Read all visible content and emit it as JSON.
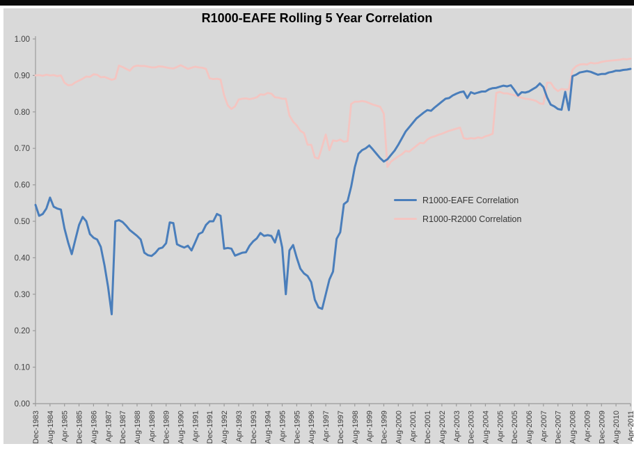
{
  "page": {
    "top_bar_color": "#0a0a0a",
    "background": "#ffffff"
  },
  "chart_data": {
    "type": "line",
    "title": "R1000-EAFE Rolling 5 Year Correlation",
    "xlabel": "",
    "ylabel": "",
    "plot_bg": "#d9d9d9",
    "axis_color": "#9b9b9b",
    "tick_label_color": "#3f3f3f",
    "grid": false,
    "legend_position": "inside-center-right",
    "ylim": [
      0,
      1
    ],
    "ytick_step": 0.1,
    "ytick_labels": [
      "0.00",
      "0.10",
      "0.20",
      "0.30",
      "0.40",
      "0.50",
      "0.60",
      "0.70",
      "0.80",
      "0.90",
      "1.00"
    ],
    "x_label_every_n_points": 4,
    "x_period_months": 2,
    "categories": [
      "Dec-1983",
      "Aug-1984",
      "Apr-1985",
      "Dec-1985",
      "Aug-1986",
      "Apr-1987",
      "Dec-1987",
      "Aug-1988",
      "Apr-1989",
      "Dec-1989",
      "Aug-1990",
      "Apr-1991",
      "Dec-1991",
      "Aug-1992",
      "Apr-1993",
      "Dec-1993",
      "Aug-1994",
      "Apr-1995",
      "Dec-1995",
      "Aug-1996",
      "Apr-1997",
      "Dec-1997",
      "Aug-1998",
      "Apr-1999",
      "Dec-1999",
      "Aug-2000",
      "Apr-2001",
      "Dec-2001",
      "Aug-2002",
      "Apr-2003",
      "Dec-2003",
      "Aug-2004",
      "Apr-2005",
      "Dec-2005",
      "Aug-2006",
      "Apr-2007",
      "Dec-2007",
      "Aug-2008",
      "Apr-2009",
      "Dec-2009",
      "Aug-2010",
      "Apr-2011"
    ],
    "series": [
      {
        "name": "R1000-EAFE Correlation",
        "color": "#4a7ebb",
        "stroke_width": 3,
        "values": [
          0.545,
          0.515,
          0.52,
          0.535,
          0.565,
          0.54,
          0.535,
          0.532,
          0.48,
          0.442,
          0.41,
          0.45,
          0.49,
          0.512,
          0.5,
          0.465,
          0.455,
          0.45,
          0.43,
          0.38,
          0.32,
          0.245,
          0.5,
          0.503,
          0.498,
          0.488,
          0.476,
          0.468,
          0.46,
          0.45,
          0.414,
          0.407,
          0.405,
          0.413,
          0.425,
          0.428,
          0.44,
          0.497,
          0.495,
          0.437,
          0.432,
          0.428,
          0.433,
          0.42,
          0.442,
          0.465,
          0.47,
          0.49,
          0.5,
          0.5,
          0.52,
          0.515,
          0.425,
          0.427,
          0.425,
          0.406,
          0.41,
          0.414,
          0.415,
          0.433,
          0.445,
          0.453,
          0.468,
          0.46,
          0.462,
          0.46,
          0.442,
          0.475,
          0.428,
          0.3,
          0.42,
          0.435,
          0.4,
          0.37,
          0.357,
          0.35,
          0.333,
          0.285,
          0.264,
          0.26,
          0.3,
          0.34,
          0.362,
          0.452,
          0.47,
          0.547,
          0.555,
          0.595,
          0.648,
          0.685,
          0.695,
          0.7,
          0.708,
          0.697,
          0.685,
          0.673,
          0.664,
          0.67,
          0.682,
          0.694,
          0.71,
          0.728,
          0.746,
          0.758,
          0.77,
          0.782,
          0.79,
          0.798,
          0.805,
          0.803,
          0.812,
          0.82,
          0.828,
          0.836,
          0.838,
          0.845,
          0.85,
          0.854,
          0.856,
          0.838,
          0.854,
          0.85,
          0.853,
          0.856,
          0.856,
          0.862,
          0.865,
          0.866,
          0.869,
          0.872,
          0.87,
          0.873,
          0.86,
          0.845,
          0.854,
          0.853,
          0.856,
          0.862,
          0.868,
          0.878,
          0.868,
          0.84,
          0.82,
          0.815,
          0.808,
          0.806,
          0.855,
          0.805,
          0.898,
          0.902,
          0.908,
          0.91,
          0.912,
          0.91,
          0.906,
          0.902,
          0.904,
          0.904,
          0.908,
          0.91,
          0.913,
          0.913,
          0.915,
          0.916,
          0.918
        ]
      },
      {
        "name": "R1000-R2000 Correlation",
        "color": "#f4c5c1",
        "stroke_width": 2.8,
        "values": [
          0.9,
          0.901,
          0.899,
          0.902,
          0.9,
          0.901,
          0.898,
          0.9,
          0.88,
          0.873,
          0.874,
          0.881,
          0.886,
          0.891,
          0.897,
          0.896,
          0.903,
          0.902,
          0.895,
          0.896,
          0.892,
          0.888,
          0.891,
          0.927,
          0.923,
          0.918,
          0.913,
          0.924,
          0.927,
          0.926,
          0.926,
          0.924,
          0.922,
          0.922,
          0.925,
          0.924,
          0.922,
          0.92,
          0.919,
          0.923,
          0.928,
          0.923,
          0.918,
          0.921,
          0.924,
          0.922,
          0.921,
          0.918,
          0.892,
          0.89,
          0.891,
          0.889,
          0.845,
          0.818,
          0.808,
          0.815,
          0.834,
          0.836,
          0.837,
          0.835,
          0.837,
          0.84,
          0.848,
          0.847,
          0.852,
          0.85,
          0.84,
          0.839,
          0.836,
          0.836,
          0.79,
          0.773,
          0.763,
          0.748,
          0.742,
          0.71,
          0.71,
          0.675,
          0.672,
          0.705,
          0.738,
          0.695,
          0.722,
          0.72,
          0.724,
          0.718,
          0.72,
          0.822,
          0.828,
          0.828,
          0.83,
          0.828,
          0.824,
          0.82,
          0.817,
          0.814,
          0.795,
          0.649,
          0.664,
          0.671,
          0.678,
          0.684,
          0.693,
          0.691,
          0.699,
          0.707,
          0.715,
          0.714,
          0.724,
          0.73,
          0.733,
          0.737,
          0.74,
          0.744,
          0.748,
          0.751,
          0.754,
          0.757,
          0.728,
          0.726,
          0.728,
          0.727,
          0.73,
          0.728,
          0.733,
          0.736,
          0.74,
          0.852,
          0.855,
          0.851,
          0.851,
          0.848,
          0.846,
          0.842,
          0.839,
          0.836,
          0.835,
          0.833,
          0.83,
          0.823,
          0.822,
          0.88,
          0.88,
          0.865,
          0.857,
          0.863,
          0.861,
          0.862,
          0.915,
          0.925,
          0.93,
          0.931,
          0.93,
          0.935,
          0.933,
          0.934,
          0.937,
          0.939,
          0.94,
          0.941,
          0.942,
          0.943,
          0.945,
          0.944,
          0.946
        ]
      }
    ]
  }
}
